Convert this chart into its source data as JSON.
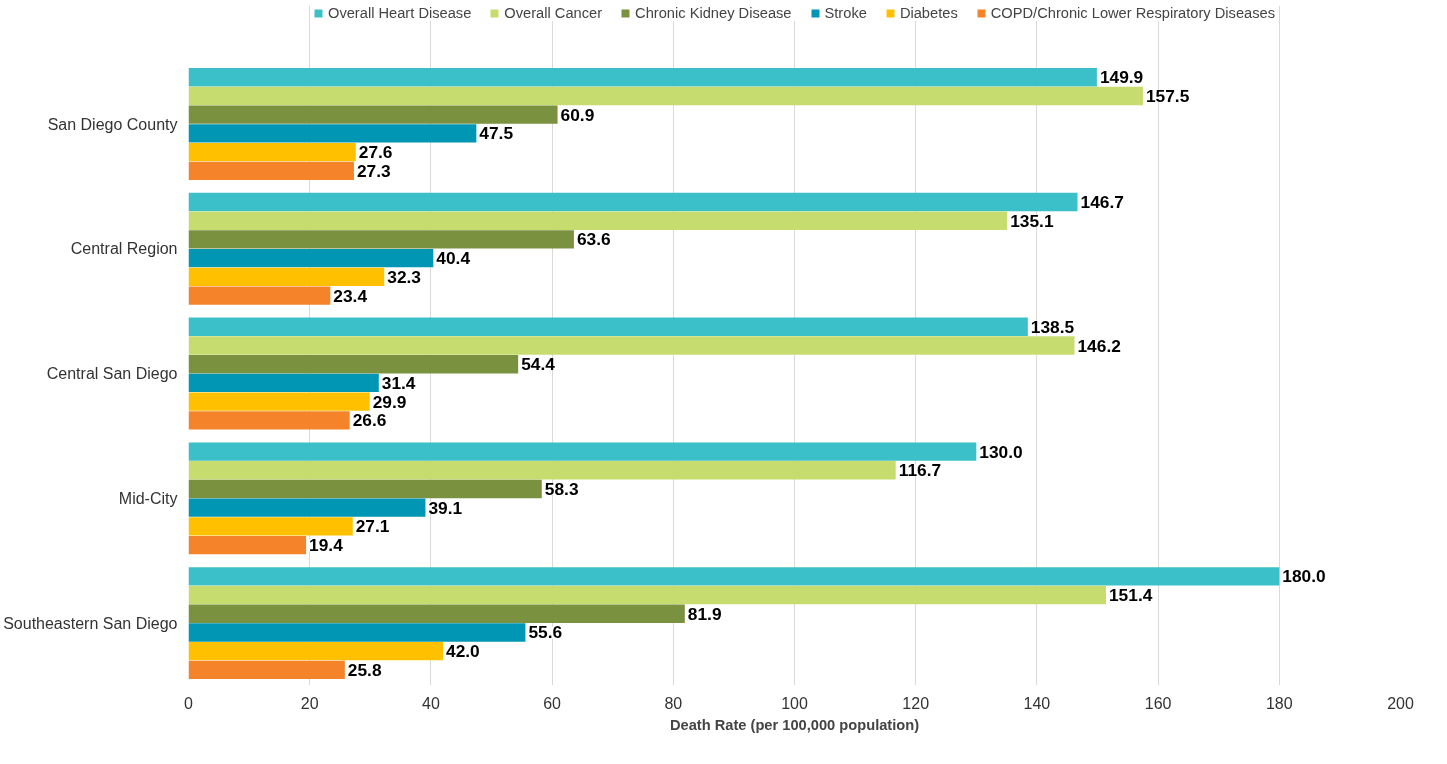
{
  "chart_data": {
    "type": "bar",
    "orientation": "horizontal",
    "xlabel": "Death Rate (per 100,000 population)",
    "categories": [
      "San Diego County",
      "Central Region",
      "Central San Diego",
      "Mid-City",
      "Southeastern San Diego"
    ],
    "series": [
      {
        "name": "Overall Heart Disease",
        "color": "#3bbfc9",
        "values": [
          149.9,
          146.7,
          138.5,
          130.0,
          180.0
        ],
        "value_labels": [
          "149.9",
          "146.7",
          "138.5",
          "130.0",
          "180.0"
        ]
      },
      {
        "name": "Overall Cancer",
        "color": "#c6dc6f",
        "values": [
          157.5,
          135.1,
          146.2,
          116.7,
          151.4
        ],
        "value_labels": [
          "157.5",
          "135.1",
          "146.2",
          "116.7",
          "151.4"
        ]
      },
      {
        "name": "Chronic Kidney Disease",
        "color": "#7a9140",
        "values": [
          60.9,
          63.6,
          54.4,
          58.3,
          81.9
        ],
        "value_labels": [
          "60.9",
          "63.6",
          "54.4",
          "58.3",
          "81.9"
        ]
      },
      {
        "name": "Stroke",
        "color": "#0096b4",
        "values": [
          47.5,
          40.4,
          31.4,
          39.1,
          55.6
        ],
        "value_labels": [
          "47.5",
          "40.4",
          "31.4",
          "39.1",
          "55.6"
        ]
      },
      {
        "name": "Diabetes",
        "color": "#ffc000",
        "values": [
          27.6,
          32.3,
          29.9,
          27.1,
          42.0
        ],
        "value_labels": [
          "27.6",
          "32.3",
          "29.9",
          "27.1",
          "42.0"
        ]
      },
      {
        "name": "COPD/Chronic Lower Respiratory Diseases",
        "color": "#f5832a",
        "values": [
          27.3,
          23.4,
          26.6,
          19.4,
          25.8
        ],
        "value_labels": [
          "27.3",
          "23.4",
          "26.6",
          "19.4",
          "25.8"
        ]
      }
    ],
    "xlim": [
      0,
      200
    ],
    "xticks": [
      0,
      20,
      40,
      60,
      80,
      100,
      120,
      140,
      160,
      180,
      200
    ],
    "grid": "x",
    "legend": "top"
  }
}
